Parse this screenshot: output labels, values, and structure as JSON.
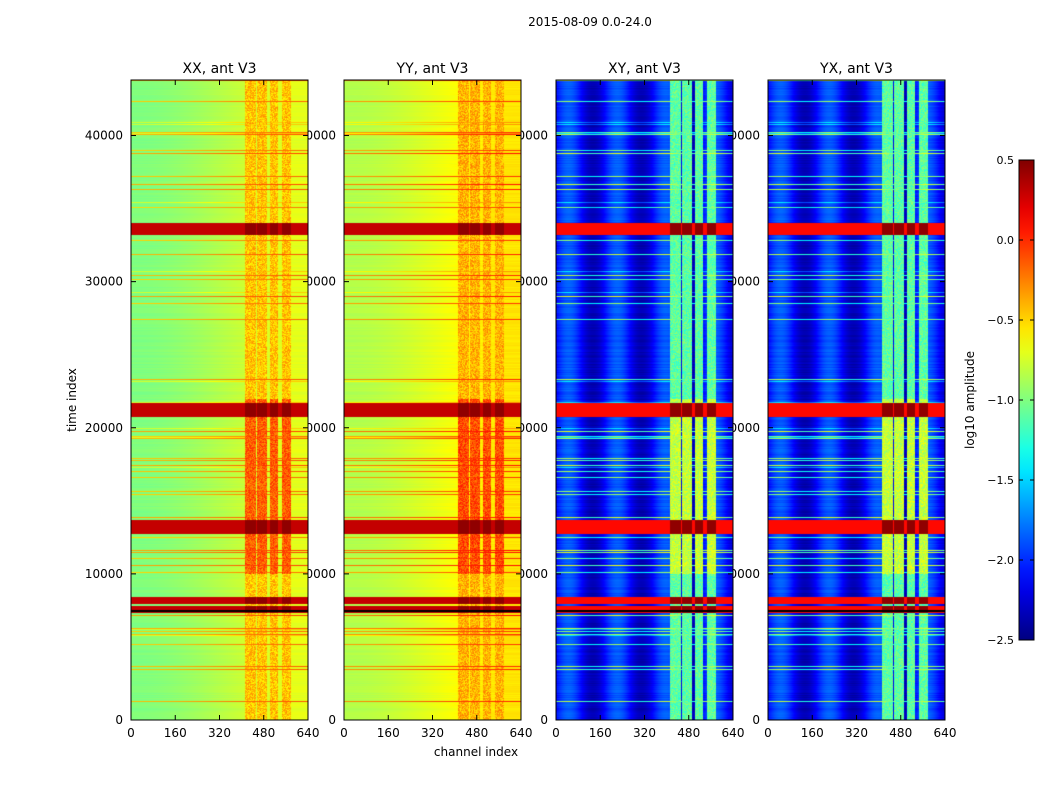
{
  "chart_data": {
    "type": "heatmap",
    "suptitle": "2015-08-09 0.0-24.0",
    "panels": [
      {
        "title": "XX, ant V3",
        "base": -0.85,
        "rfi_level": -0.45
      },
      {
        "title": "YY, ant V3",
        "base": -0.7,
        "rfi_level": -0.4
      },
      {
        "title": "XY, ant V3",
        "base": -2.1,
        "rfi_level": -1.1
      },
      {
        "title": "YX, ant V3",
        "base": -2.1,
        "rfi_level": -1.1
      }
    ],
    "ylabel": "time index",
    "xlabel": "channel index",
    "xlim": [
      0,
      640
    ],
    "ylim": [
      0,
      43800
    ],
    "xticks": [
      0,
      160,
      320,
      480,
      640
    ],
    "yticks": [
      0,
      10000,
      20000,
      30000,
      40000
    ],
    "xtick_labels": [
      "0",
      "160",
      "320",
      "480",
      "640"
    ],
    "ytick_labels": [
      "0",
      "10000",
      "20000",
      "30000",
      "40000"
    ],
    "rfi_channels": [
      [
        410,
        450
      ],
      [
        455,
        490
      ],
      [
        500,
        530
      ],
      [
        545,
        575
      ]
    ],
    "strong_rows": [
      33500,
      33800,
      21000,
      21500,
      13000,
      13500,
      8200,
      7600
    ],
    "flagged_row": 7500,
    "colorbar": {
      "label": "log10 amplitude",
      "range": [
        -2.5,
        0.5
      ],
      "ticks": [
        0.5,
        0.0,
        -0.5,
        -1.0,
        -1.5,
        -2.0,
        -2.5
      ],
      "tick_labels": [
        "0.5",
        "0.0",
        "−0.5",
        "−1.0",
        "−1.5",
        "−2.0",
        "−2.5"
      ],
      "colormap": "jet"
    }
  }
}
